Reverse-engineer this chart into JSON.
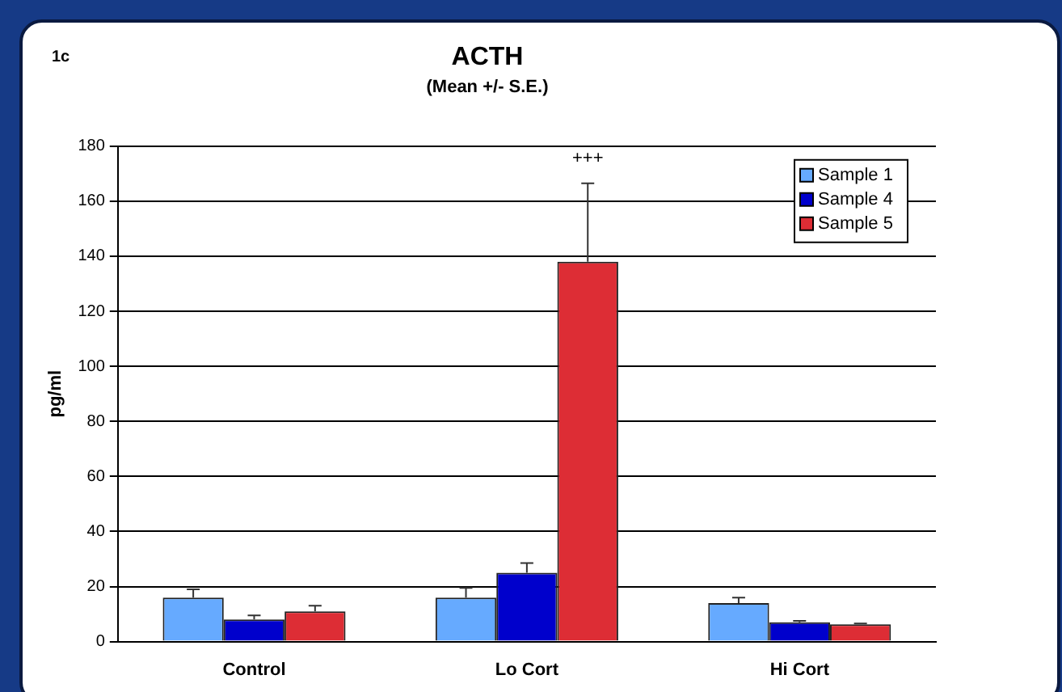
{
  "chart_data": {
    "type": "bar",
    "title": "ACTH",
    "subtitle": "(Mean +/- S.E.)",
    "ylabel": "pg/ml",
    "categories": [
      "Control",
      "Lo Cort",
      "Hi Cort"
    ],
    "series": [
      {
        "name": "Sample 1",
        "color": "#66aaff",
        "values": [
          16,
          16,
          14
        ],
        "errors": [
          3,
          3.5,
          2
        ]
      },
      {
        "name": "Sample 4",
        "color": "#0000cc",
        "values": [
          8,
          25,
          7
        ],
        "errors": [
          1.5,
          3.5,
          0.5
        ]
      },
      {
        "name": "Sample 5",
        "color": "#dd2d35",
        "values": [
          11,
          138,
          6.3
        ],
        "errors": [
          2,
          28.5,
          0.3
        ]
      }
    ],
    "ylim": [
      0,
      180
    ],
    "yticks": [
      0,
      20,
      40,
      60,
      80,
      100,
      120,
      140,
      160,
      180
    ],
    "grid": "y",
    "legend": "top right",
    "annotations": [
      "1c",
      "+++"
    ]
  }
}
